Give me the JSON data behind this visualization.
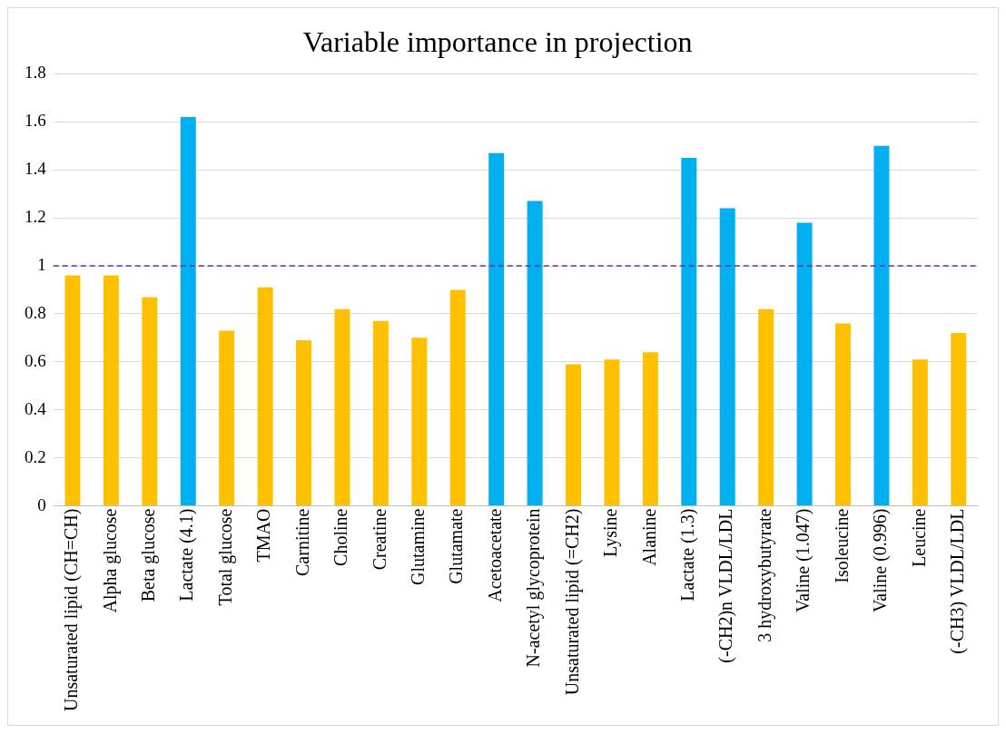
{
  "chart_data": {
    "type": "bar",
    "title": "Variable importance in projection",
    "categories": [
      "Unsaturated lipid (CH=CH)",
      "Alpha glucose",
      "Beta glucose",
      "Lactate (4.1)",
      "Total glucose",
      "TMAO",
      "Carnitine",
      "Choline",
      "Creatine",
      "Glutamine",
      "Glutamate",
      "Acetoacetate",
      "N-acetyl glycoprotein",
      "Unsaturated lipid (=CH2)",
      "Lysine",
      "Alanine",
      "Lactate (1.3)",
      "(-CH2)n VLDL/LDL",
      "3 hydroxybutyrate",
      "Valine (1.047)",
      "Isoleucine",
      "Valine (0.996)",
      "Leucine",
      "(-CH3) VLDL/LDL"
    ],
    "values": [
      0.96,
      0.96,
      0.87,
      1.62,
      0.73,
      0.91,
      0.69,
      0.82,
      0.77,
      0.7,
      0.9,
      1.47,
      1.27,
      0.59,
      0.61,
      0.64,
      1.45,
      1.24,
      0.82,
      1.18,
      0.76,
      1.5,
      0.61,
      0.72
    ],
    "colors": [
      "#ffc000",
      "#ffc000",
      "#ffc000",
      "#00b0f0",
      "#ffc000",
      "#ffc000",
      "#ffc000",
      "#ffc000",
      "#ffc000",
      "#ffc000",
      "#ffc000",
      "#00b0f0",
      "#00b0f0",
      "#ffc000",
      "#ffc000",
      "#ffc000",
      "#00b0f0",
      "#00b0f0",
      "#ffc000",
      "#00b0f0",
      "#ffc000",
      "#00b0f0",
      "#ffc000",
      "#ffc000"
    ],
    "ylim": [
      0,
      1.8
    ],
    "yticks": [
      0,
      0.2,
      0.4,
      0.6,
      0.8,
      1,
      1.2,
      1.4,
      1.6,
      1.8
    ],
    "grid": "y",
    "ref_lines": [
      {
        "axis": "y",
        "value": 1,
        "color": "#7030a0",
        "line_style": "dashed"
      }
    ]
  }
}
